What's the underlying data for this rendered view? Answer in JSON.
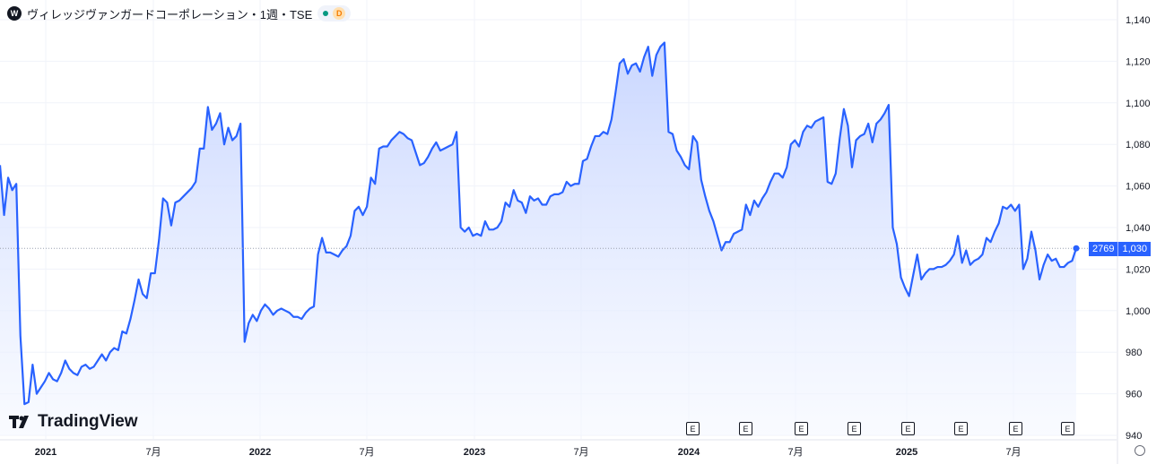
{
  "header": {
    "logo_letter": "W",
    "title": "ヴィレッジヴァンガードコーポレーション・1週・TSE",
    "status_color": "#089981",
    "badge": "D"
  },
  "branding": {
    "name": "TradingView"
  },
  "price_tag": {
    "volume": "2769",
    "price": "1,030"
  },
  "event_markers": [
    "E",
    "E",
    "E",
    "E",
    "E",
    "E",
    "E",
    "E"
  ],
  "colors": {
    "line": "#2962ff",
    "fill_top": "#c6d4ff",
    "fill_bottom": "#f5f8ff"
  },
  "chart_data": {
    "type": "area",
    "title": "",
    "xlabel": "",
    "ylabel": "",
    "ylim": [
      940,
      1140
    ],
    "y_ticks": [
      940,
      960,
      980,
      1000,
      1020,
      1040,
      1060,
      1080,
      1100,
      1120,
      1140
    ],
    "y_tick_labels": [
      "940",
      "960",
      "980",
      "1,000",
      "1,020",
      "1,040",
      "1,060",
      "1,080",
      "1,100",
      "1,120",
      "1,140"
    ],
    "x_ticks": [
      {
        "label": "2021",
        "bold": true
      },
      {
        "label": "7月",
        "bold": false
      },
      {
        "label": "2022",
        "bold": true
      },
      {
        "label": "7月",
        "bold": false
      },
      {
        "label": "2023",
        "bold": true
      },
      {
        "label": "7月",
        "bold": false
      },
      {
        "label": "2024",
        "bold": true
      },
      {
        "label": "7月",
        "bold": false
      },
      {
        "label": "2025",
        "bold": true
      },
      {
        "label": "7月",
        "bold": false
      }
    ],
    "grid": true,
    "last_value": 1030,
    "series": [
      {
        "values": [
          1070,
          1046,
          1064,
          1058,
          1061,
          988,
          955,
          956,
          974,
          960,
          963,
          966,
          970,
          967,
          966,
          970,
          976,
          972,
          970,
          969,
          973,
          974,
          972,
          973,
          976,
          979,
          976,
          980,
          982,
          981,
          990,
          989,
          996,
          1005,
          1015,
          1008,
          1006,
          1018,
          1018,
          1034,
          1054,
          1052,
          1041,
          1052,
          1053,
          1055,
          1057,
          1059,
          1062,
          1078,
          1078,
          1098,
          1087,
          1090,
          1095,
          1080,
          1088,
          1082,
          1084,
          1090,
          985,
          994,
          998,
          995,
          1000,
          1003,
          1001,
          998,
          1000,
          1001,
          1000,
          999,
          997,
          997,
          996,
          999,
          1001,
          1002,
          1027,
          1035,
          1028,
          1028,
          1027,
          1026,
          1029,
          1031,
          1036,
          1048,
          1050,
          1046,
          1050,
          1064,
          1061,
          1078,
          1079,
          1079,
          1082,
          1084,
          1086,
          1085,
          1083,
          1082,
          1076,
          1070,
          1071,
          1074,
          1078,
          1081,
          1077,
          1078,
          1079,
          1080,
          1086,
          1040,
          1038,
          1040,
          1036,
          1037,
          1036,
          1043,
          1039,
          1039,
          1040,
          1043,
          1052,
          1050,
          1058,
          1053,
          1052,
          1047,
          1055,
          1053,
          1054,
          1051,
          1051,
          1055,
          1056,
          1056,
          1057,
          1062,
          1060,
          1061,
          1061,
          1072,
          1073,
          1079,
          1084,
          1084,
          1086,
          1085,
          1092,
          1105,
          1119,
          1121,
          1114,
          1118,
          1119,
          1115,
          1122,
          1127,
          1113,
          1123,
          1127,
          1129,
          1086,
          1085,
          1077,
          1074,
          1070,
          1068,
          1084,
          1081,
          1063,
          1055,
          1048,
          1043,
          1036,
          1029,
          1033,
          1033,
          1037,
          1038,
          1039,
          1051,
          1046,
          1053,
          1050,
          1054,
          1057,
          1062,
          1066,
          1066,
          1064,
          1069,
          1080,
          1082,
          1079,
          1086,
          1089,
          1088,
          1091,
          1092,
          1093,
          1062,
          1061,
          1066,
          1083,
          1097,
          1089,
          1069,
          1082,
          1084,
          1085,
          1090,
          1081,
          1090,
          1092,
          1095,
          1099,
          1040,
          1032,
          1016,
          1011,
          1007,
          1017,
          1027,
          1015,
          1018,
          1020,
          1020,
          1021,
          1021,
          1022,
          1024,
          1027,
          1036,
          1023,
          1029,
          1022,
          1024,
          1025,
          1027,
          1035,
          1033,
          1038,
          1042,
          1050,
          1049,
          1051,
          1048,
          1051,
          1020,
          1025,
          1038,
          1029,
          1015,
          1022,
          1027,
          1024,
          1025,
          1021,
          1021,
          1023,
          1024,
          1030
        ]
      }
    ]
  }
}
